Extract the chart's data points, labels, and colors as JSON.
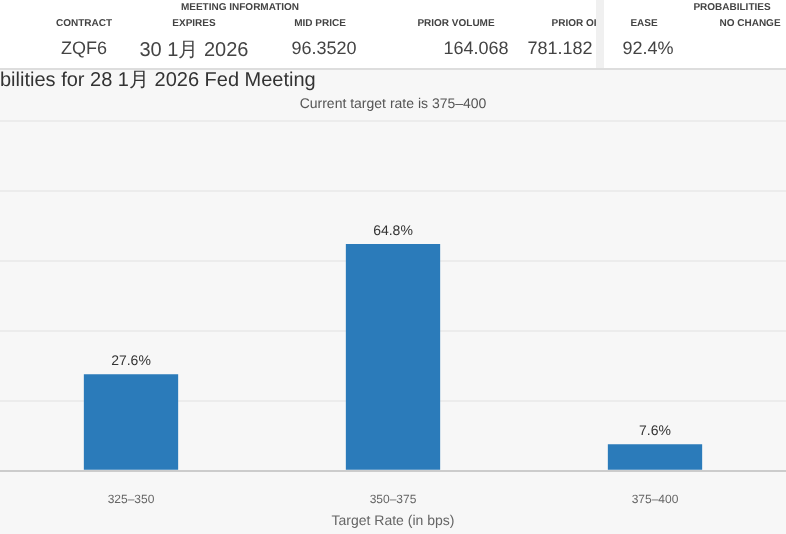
{
  "chart_data": {
    "type": "bar",
    "title": "bilities for 28 1月 2026 Fed Meeting",
    "subtitle": "Current target rate is 375–400",
    "xlabel": "Target Rate (in bps)",
    "categories": [
      "325–350",
      "350–375",
      "375–400"
    ],
    "values": [
      27.6,
      64.8,
      7.6
    ],
    "color": "#2b7bba",
    "ylim": [
      0,
      100
    ],
    "yticks": [
      {
        "value": 0,
        "label": null
      },
      {
        "value": 20,
        "label": null
      },
      {
        "value": 40,
        "label": null
      },
      {
        "value": 60,
        "label": null
      },
      {
        "value": 80,
        "label": null
      },
      {
        "value": 100,
        "label": null
      }
    ],
    "grid": "y",
    "tick_labels": "x",
    "legend": false,
    "data_labels": true,
    "value_labels": [
      "27.6%",
      "64.8%",
      "7.6%"
    ],
    "annotations": [
      "MEETING INFORMATION",
      "PROBABILITIES",
      "CONTRACT",
      "EXPIRES",
      "MID PRICE",
      "PRIOR VOLUME",
      "PRIOR OI",
      "EASE",
      "NO CHANGE",
      "ZQF6",
      "30 1月 2026",
      "96.3520",
      "164.068",
      "781.182",
      "92.4%"
    ]
  }
}
